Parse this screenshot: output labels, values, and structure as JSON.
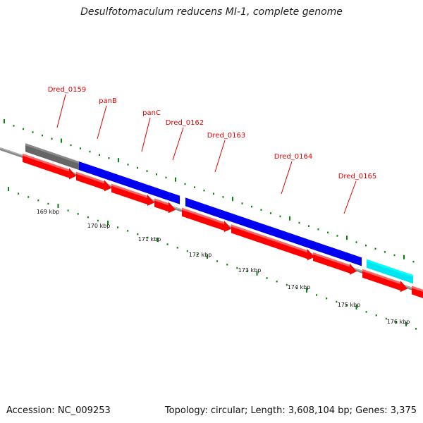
{
  "title": "Desulfotomaculum reducens MI-1, complete genome",
  "footer": {
    "accession": "Accession: NC_009253",
    "summary": "Topology: circular; Length: 3,608,104 bp; Genes: 3,375"
  },
  "colors": {
    "cds": "#ff0000",
    "gene_blue": "#0000ee",
    "gene_grey": "#666666",
    "gene_cyan": "#00e5ee",
    "label": "#e00000",
    "tick": "#008800",
    "backbone": "#888888"
  },
  "gene_labels": [
    "Dred_0159",
    "panB",
    "panC",
    "Dred_0162",
    "Dred_0163",
    "Dred_0164",
    "Dred_0165"
  ],
  "kbp_labels": [
    "169 kbp",
    "170 kbp",
    "171 kbp",
    "172 kbp",
    "173 kbp",
    "174 kbp",
    "175 kbp",
    "176 kbp"
  ]
}
